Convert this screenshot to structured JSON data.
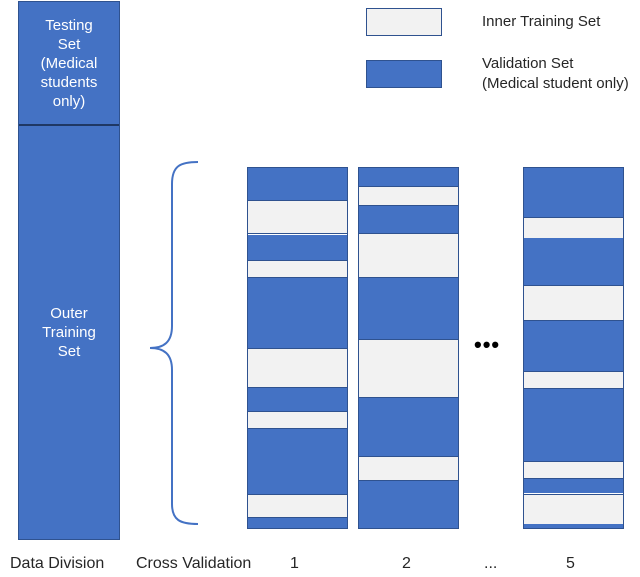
{
  "division": {
    "testing_label": "Testing\nSet\n(Medical\nstudents\nonly)",
    "outer_label": "Outer\nTraining\nSet"
  },
  "legend": {
    "inner_label": "Inner Training Set",
    "validation_label": "Validation Set\n(Medical student only)"
  },
  "colors": {
    "validation": "#4472c4",
    "inner_training": "#f2f2f2",
    "outline": "#2f528f"
  },
  "middle_ellipsis": "•••",
  "folds": [
    {
      "label": "1",
      "segments": [
        {
          "type": "validation",
          "start": 0.0,
          "end": 0.09
        },
        {
          "type": "inner",
          "start": 0.09,
          "end": 0.185
        },
        {
          "type": "validation",
          "start": 0.185,
          "end": 0.255
        },
        {
          "type": "inner",
          "start": 0.255,
          "end": 0.305
        },
        {
          "type": "validation",
          "start": 0.305,
          "end": 0.5
        },
        {
          "type": "inner",
          "start": 0.5,
          "end": 0.61
        },
        {
          "type": "validation",
          "start": 0.61,
          "end": 0.675
        },
        {
          "type": "inner",
          "start": 0.675,
          "end": 0.725
        },
        {
          "type": "validation",
          "start": 0.725,
          "end": 0.905
        },
        {
          "type": "inner",
          "start": 0.905,
          "end": 0.972
        },
        {
          "type": "validation",
          "start": 0.972,
          "end": 1.0
        }
      ]
    },
    {
      "label": "2",
      "segments": [
        {
          "type": "validation",
          "start": 0.0,
          "end": 0.05
        },
        {
          "type": "inner",
          "start": 0.05,
          "end": 0.105
        },
        {
          "type": "validation",
          "start": 0.105,
          "end": 0.18
        },
        {
          "type": "inner",
          "start": 0.18,
          "end": 0.305
        },
        {
          "type": "validation",
          "start": 0.305,
          "end": 0.475
        },
        {
          "type": "inner",
          "start": 0.475,
          "end": 0.64
        },
        {
          "type": "validation",
          "start": 0.64,
          "end": 0.8
        },
        {
          "type": "inner",
          "start": 0.8,
          "end": 0.87
        },
        {
          "type": "validation",
          "start": 0.87,
          "end": 1.0
        }
      ]
    },
    {
      "label": "5",
      "segments": [
        {
          "type": "validation",
          "start": 0.0,
          "end": 0.135
        },
        {
          "type": "inner",
          "start": 0.135,
          "end": 0.195
        },
        {
          "type": "validation",
          "start": 0.195,
          "end": 0.325
        },
        {
          "type": "inner",
          "start": 0.325,
          "end": 0.425
        },
        {
          "type": "validation",
          "start": 0.425,
          "end": 0.565
        },
        {
          "type": "inner",
          "start": 0.565,
          "end": 0.615
        },
        {
          "type": "validation",
          "start": 0.615,
          "end": 0.815
        },
        {
          "type": "inner",
          "start": 0.815,
          "end": 0.865
        },
        {
          "type": "validation",
          "start": 0.865,
          "end": 0.905
        },
        {
          "type": "inner",
          "start": 0.905,
          "end": 0.99
        },
        {
          "type": "validation",
          "start": 0.99,
          "end": 1.0
        }
      ]
    }
  ],
  "bottom_labels": {
    "data_division": "Data Division",
    "cross_validation": "Cross Validation",
    "fold1": "1",
    "fold2": "2",
    "ellipsis": "...",
    "fold5": "5"
  }
}
